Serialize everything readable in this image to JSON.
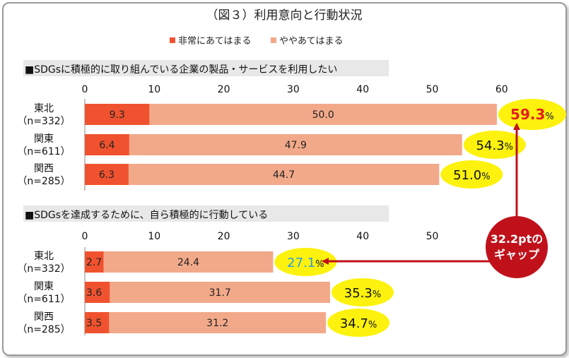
{
  "title": "（図３）利用意向と行動状況",
  "legend": [
    {
      "label": "非常にあてはまる",
      "color": "#f0522f"
    },
    {
      "label": "ややあてはまる",
      "color": "#f2a98a"
    }
  ],
  "colors": {
    "strong": "#f0522f",
    "moderate": "#f2a98a",
    "highlight": "#fcf20e",
    "accent_red": "#e31f1f",
    "accent_blue": "#2f9bdc",
    "arrow": "#c0111b",
    "section_bg": "#e8e8e8"
  },
  "chart_data": [
    {
      "type": "bar",
      "orientation": "horizontal",
      "stacked": true,
      "title": "■SDGsに積極的に取り組んでいる企業の製品・サービスを利用したい",
      "categories": [
        {
          "name": "東北",
          "n": "（n=332）"
        },
        {
          "name": "関東",
          "n": "（n=611）"
        },
        {
          "name": "関西",
          "n": "（n=285）"
        }
      ],
      "xlim": [
        0,
        60
      ],
      "ticks": [
        0,
        10,
        20,
        30,
        40,
        50,
        60
      ],
      "series": [
        {
          "name": "非常にあてはまる",
          "values": [
            9.3,
            6.4,
            6.3
          ]
        },
        {
          "name": "ややあてはまる",
          "values": [
            50.0,
            47.9,
            44.7
          ]
        }
      ],
      "series_labels": [
        [
          "9.3",
          "6.4",
          "6.3"
        ],
        [
          "50.0",
          "47.9",
          "44.7"
        ]
      ],
      "totals": [
        {
          "value": 59.3,
          "number": "59.3",
          "unit": "%"
        },
        {
          "value": 54.3,
          "number": "54.3",
          "unit": "%"
        },
        {
          "value": 51.0,
          "number": "51.0",
          "unit": "%"
        }
      ],
      "grid": false,
      "legend_position": "top"
    },
    {
      "type": "bar",
      "orientation": "horizontal",
      "stacked": true,
      "title": "■SDGsを達成するために、自ら積極的に行動している",
      "categories": [
        {
          "name": "東北",
          "n": "（n=332）"
        },
        {
          "name": "関東",
          "n": "（n=611）"
        },
        {
          "name": "関西",
          "n": "（n=285）"
        }
      ],
      "xlim": [
        0,
        60
      ],
      "ticks": [
        0,
        10,
        20,
        30,
        40,
        50
      ],
      "series": [
        {
          "name": "非常にあてはまる",
          "values": [
            2.7,
            3.6,
            3.5
          ]
        },
        {
          "name": "ややあてはまる",
          "values": [
            24.4,
            31.7,
            31.2
          ]
        }
      ],
      "series_labels": [
        [
          "2.7",
          "3.6",
          "3.5"
        ],
        [
          "24.4",
          "31.7",
          "31.2"
        ]
      ],
      "totals": [
        {
          "value": 27.1,
          "number": "27.1",
          "unit": "%"
        },
        {
          "value": 35.3,
          "number": "35.3",
          "unit": "%"
        },
        {
          "value": 34.7,
          "number": "34.7",
          "unit": "%"
        }
      ],
      "grid": false,
      "legend_position": "top"
    }
  ],
  "gap_callout": {
    "line1": "32.2ptの",
    "line2": "ギャップ"
  }
}
